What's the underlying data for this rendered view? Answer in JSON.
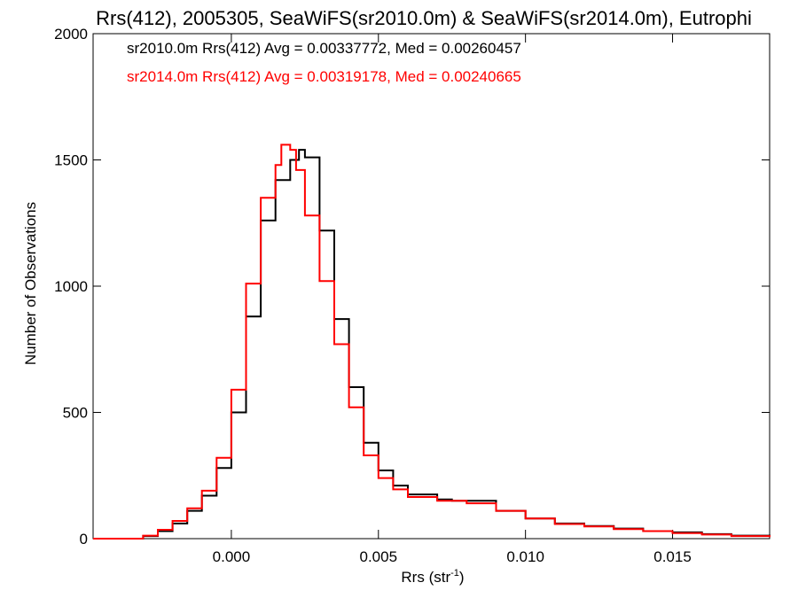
{
  "chart_data": {
    "type": "histogram",
    "title": "Rrs(412), 2005305, SeaWiFS(sr2010.0m) & SeaWiFS(sr2014.0m), Eutrophi",
    "xlabel": "Rrs (str",
    "xlabel_sup": "-1",
    "xlabel_close": ")",
    "ylabel": "Number of Observations",
    "xlim": [
      -0.0047,
      0.0183
    ],
    "ylim": [
      0,
      2000
    ],
    "x_ticks": [
      0.0,
      0.005,
      0.01,
      0.015
    ],
    "x_tick_labels": [
      "0.000",
      "0.005",
      "0.010",
      "0.015"
    ],
    "y_ticks": [
      0,
      500,
      1000,
      1500,
      2000
    ],
    "y_tick_labels": [
      "0",
      "500",
      "1000",
      "1500",
      "2000"
    ],
    "annotations": [
      {
        "text": "sr2010.0m Rrs(412) Avg = 0.00337772, Med = 0.00260457",
        "color": "#000000"
      },
      {
        "text": "sr2014.0m Rrs(412) Avg = 0.00319178, Med = 0.00240665",
        "color": "#ff0000"
      }
    ],
    "series": [
      {
        "name": "sr2010.0m",
        "color": "#000000",
        "x": [
          -0.0047,
          -0.003,
          -0.0025,
          -0.002,
          -0.0015,
          -0.001,
          -0.0005,
          0.0,
          0.0005,
          0.001,
          0.0015,
          0.002,
          0.0023,
          0.0025,
          0.003,
          0.0035,
          0.004,
          0.0045,
          0.005,
          0.0055,
          0.006,
          0.007,
          0.0075,
          0.008,
          0.009,
          0.01,
          0.011,
          0.012,
          0.013,
          0.014,
          0.015,
          0.016,
          0.017,
          0.0183
        ],
        "y": [
          0,
          10,
          30,
          60,
          110,
          170,
          280,
          500,
          880,
          1260,
          1420,
          1500,
          1540,
          1510,
          1220,
          870,
          600,
          380,
          270,
          210,
          175,
          155,
          150,
          150,
          110,
          80,
          60,
          50,
          40,
          30,
          25,
          18,
          12,
          8
        ]
      },
      {
        "name": "sr2014.0m",
        "color": "#ff0000",
        "x": [
          -0.0047,
          -0.003,
          -0.0025,
          -0.002,
          -0.0015,
          -0.001,
          -0.0005,
          0.0,
          0.0005,
          0.001,
          0.0015,
          0.0017,
          0.002,
          0.0022,
          0.0025,
          0.003,
          0.0035,
          0.004,
          0.0045,
          0.005,
          0.0055,
          0.006,
          0.007,
          0.0075,
          0.008,
          0.009,
          0.01,
          0.011,
          0.012,
          0.013,
          0.014,
          0.015,
          0.016,
          0.017,
          0.0183
        ],
        "y": [
          0,
          12,
          35,
          70,
          120,
          190,
          320,
          590,
          1010,
          1350,
          1480,
          1560,
          1540,
          1460,
          1280,
          1020,
          770,
          520,
          330,
          240,
          195,
          165,
          150,
          150,
          140,
          110,
          80,
          58,
          48,
          38,
          30,
          22,
          16,
          10,
          6
        ]
      }
    ]
  }
}
